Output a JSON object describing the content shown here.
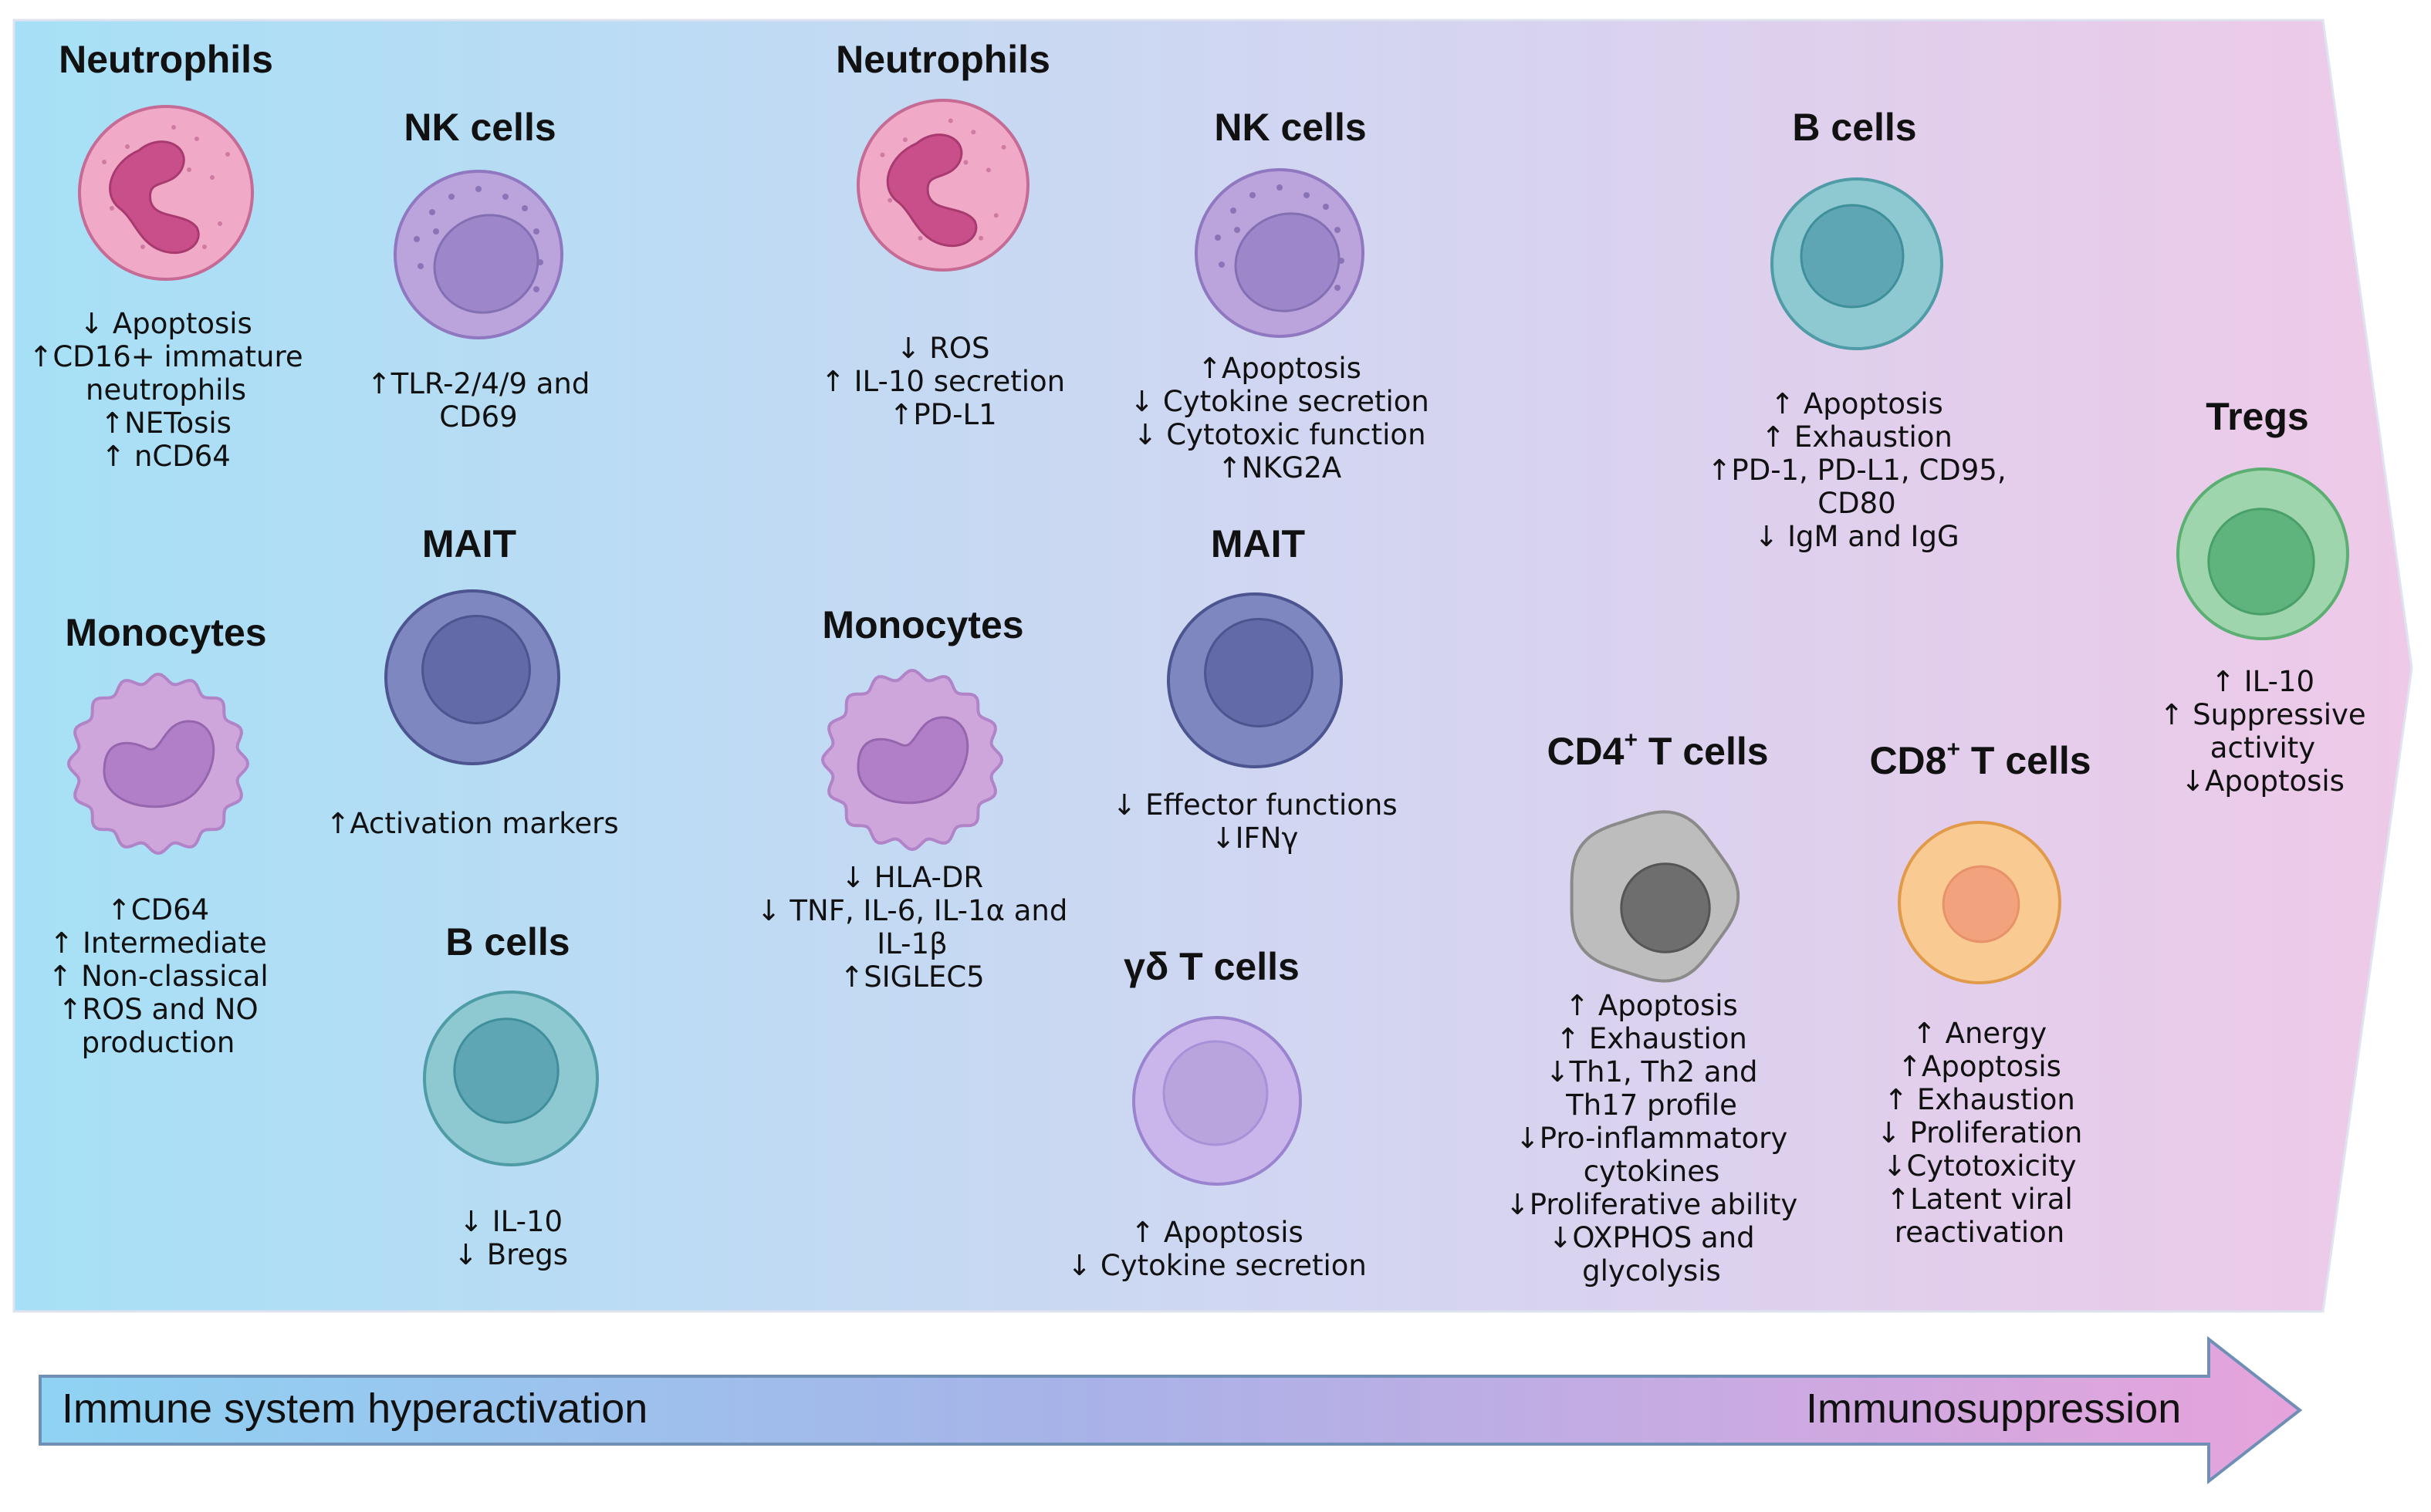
{
  "colors": {
    "panel_start": "#a6e0f6",
    "panel_end": "#eec9e8",
    "neutrophil": "#f1a9c8",
    "nk": "#bba3dc",
    "mait": "#7f87c1",
    "monocyte": "#cfa6dc",
    "bcell": "#8ec9d1",
    "gd_tcell": "#cbb6ec",
    "cd4": "#bdbdbd",
    "cd8": "#f9cb93",
    "treg": "#9fd5ac"
  },
  "cells": [
    {
      "id": "neutrophils-1",
      "name": "Neutrophils",
      "icon": "neutrophil-icon",
      "lines": [
        "↓ Apoptosis",
        "↑CD16+ immature",
        "neutrophils",
        "↑NETosis",
        "↑ nCD64"
      ]
    },
    {
      "id": "nk-cells-1",
      "name": "NK cells",
      "icon": "nk-cell-icon",
      "lines": [
        "↑TLR-2/4/9 and",
        "CD69"
      ]
    },
    {
      "id": "mait-1",
      "name": "MAIT",
      "icon": "mait-cell-icon",
      "lines": [
        "↑Activation markers"
      ]
    },
    {
      "id": "monocytes-1",
      "name": "Monocytes",
      "icon": "monocyte-icon",
      "lines": [
        "↑CD64",
        "↑ Intermediate",
        "↑ Non-classical",
        "↑ROS and NO",
        "production"
      ]
    },
    {
      "id": "b-cells-1",
      "name": "B cells",
      "icon": "b-cell-icon",
      "lines": [
        "↓ IL-10",
        "↓ Bregs"
      ]
    },
    {
      "id": "neutrophils-2",
      "name": "Neutrophils",
      "icon": "neutrophil-icon",
      "lines": [
        "↓ ROS",
        "↑ IL-10 secretion",
        "↑PD-L1"
      ]
    },
    {
      "id": "nk-cells-2",
      "name": "NK cells",
      "icon": "nk-cell-icon",
      "lines": [
        "↑Apoptosis",
        "↓ Cytokine secretion",
        "↓ Cytotoxic function",
        "↑NKG2A"
      ]
    },
    {
      "id": "monocytes-2",
      "name": "Monocytes",
      "icon": "monocyte-icon",
      "lines": [
        "↓ HLA-DR",
        "↓ TNF, IL-6, IL-1α and",
        "IL-1β",
        "↑SIGLEC5"
      ]
    },
    {
      "id": "mait-2",
      "name": "MAIT",
      "icon": "mait-cell-icon",
      "lines": [
        "↓ Effector functions",
        "↓IFNγ"
      ]
    },
    {
      "id": "gd-t-cells",
      "name": "γδ T cells",
      "icon": "gamma-delta-t-cell-icon",
      "lines": [
        "↑ Apoptosis",
        "↓ Cytokine secretion"
      ]
    },
    {
      "id": "b-cells-2",
      "name": "B cells",
      "icon": "b-cell-icon",
      "lines": [
        "↑ Apoptosis",
        "↑ Exhaustion",
        "↑PD-1, PD-L1, CD95,",
        "CD80",
        "↓ IgM and IgG"
      ]
    },
    {
      "id": "cd4-t-cells",
      "name": "CD4",
      "sup": "+",
      "suffix": " T cells",
      "icon": "cd4-t-cell-icon",
      "lines": [
        "↑ Apoptosis",
        "↑ Exhaustion",
        "↓Th1, Th2 and",
        "Th17 profile",
        "↓Pro-inflammatory",
        "cytokines",
        "↓Proliferative ability",
        "↓OXPHOS and",
        "glycolysis"
      ]
    },
    {
      "id": "cd8-t-cells",
      "name": "CD8",
      "sup": "+",
      "suffix": " T cells",
      "icon": "cd8-t-cell-icon",
      "lines": [
        "↑ Anergy",
        "↑Apoptosis",
        "↑ Exhaustion",
        "↓ Proliferation",
        "↓Cytotoxicity",
        "↑Latent viral",
        "reactivation"
      ]
    },
    {
      "id": "tregs",
      "name": "Tregs",
      "icon": "treg-cell-icon",
      "lines": [
        "↑ IL-10",
        "↑ Suppressive",
        "activity",
        "↓Apoptosis"
      ]
    }
  ],
  "bottom_arrow": {
    "left_label": "Immune system hyperactivation",
    "right_label": "Immunosuppression"
  }
}
